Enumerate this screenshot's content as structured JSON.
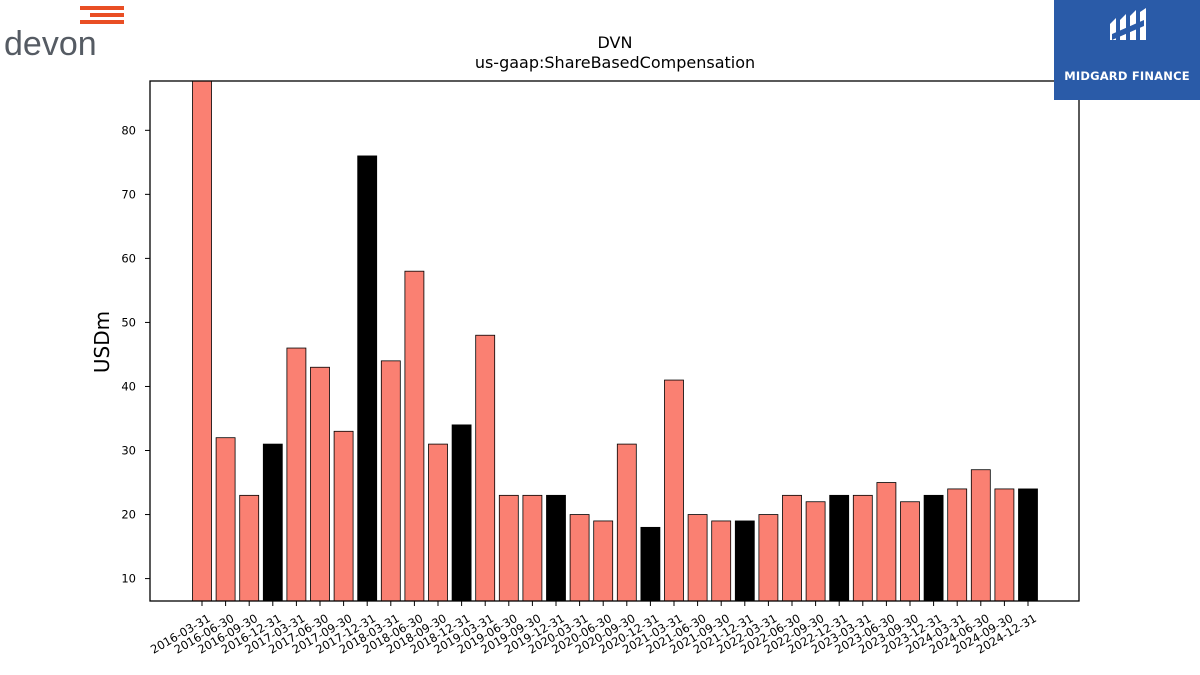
{
  "logos": {
    "left_brand": "devon",
    "right_brand": "MIDGARD FINANCE"
  },
  "chart_data": {
    "type": "bar",
    "title": "DVN",
    "subtitle": "us-gaap:ShareBasedCompensation",
    "xlabel": "",
    "ylabel": "USDm",
    "ylim": [
      6.5,
      87.7
    ],
    "yticks": [
      10,
      20,
      30,
      40,
      50,
      60,
      70,
      80
    ],
    "grid": false,
    "colors": {
      "quarter": "#fa8072",
      "year_end": "#000000",
      "edge": "#000000"
    },
    "categories": [
      "2016-03-31",
      "2016-06-30",
      "2016-09-30",
      "2016-12-31",
      "2017-03-31",
      "2017-06-30",
      "2017-09-30",
      "2017-12-31",
      "2018-03-31",
      "2018-06-30",
      "2018-09-30",
      "2018-12-31",
      "2019-03-31",
      "2019-06-30",
      "2019-09-30",
      "2019-12-31",
      "2020-03-31",
      "2020-06-30",
      "2020-09-30",
      "2020-12-31",
      "2021-03-31",
      "2021-06-30",
      "2021-09-30",
      "2021-12-31",
      "2022-03-31",
      "2022-06-30",
      "2022-09-30",
      "2022-12-31",
      "2023-03-31",
      "2023-06-30",
      "2023-09-30",
      "2023-12-31",
      "2024-03-31",
      "2024-06-30",
      "2024-09-30",
      "2024-12-31"
    ],
    "values": [
      88,
      32,
      23,
      31,
      46,
      43,
      33,
      76,
      44,
      58,
      31,
      34,
      48,
      23,
      23,
      23,
      20,
      19,
      31,
      18,
      41,
      20,
      19,
      19,
      20,
      23,
      22,
      23,
      23,
      25,
      22,
      23,
      24,
      27,
      24,
      24
    ]
  }
}
